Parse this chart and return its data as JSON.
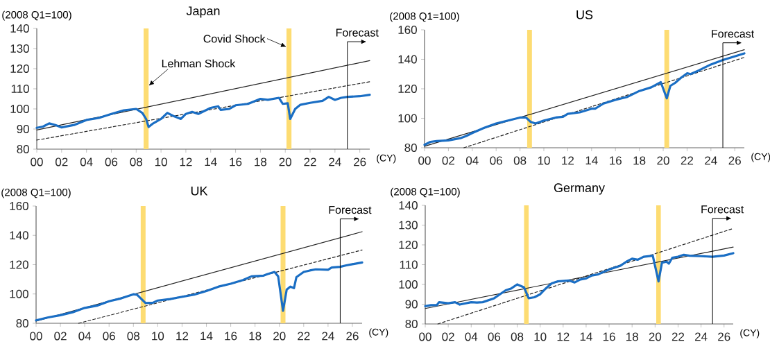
{
  "chart_data": [
    {
      "type": "line",
      "title": "Japan",
      "ylabel": "(2008 Q1=100)",
      "xlabel": "(CY)",
      "xlim": [
        2000,
        2026.8
      ],
      "ylim": [
        80,
        140
      ],
      "yticks": [
        80,
        90,
        100,
        110,
        120,
        130,
        140
      ],
      "xticks": [
        {
          "value": 2000,
          "label": "00"
        },
        {
          "value": 2002,
          "label": "02"
        },
        {
          "value": 2004,
          "label": "04"
        },
        {
          "value": 2006,
          "label": "06"
        },
        {
          "value": 2008,
          "label": "08"
        },
        {
          "value": 2010,
          "label": "10"
        },
        {
          "value": 2012,
          "label": "12"
        },
        {
          "value": 2014,
          "label": "14"
        },
        {
          "value": 2016,
          "label": "16"
        },
        {
          "value": 2018,
          "label": "18"
        },
        {
          "value": 2020,
          "label": "20"
        },
        {
          "value": 2022,
          "label": "22"
        },
        {
          "value": 2024,
          "label": "24"
        },
        {
          "value": 2026,
          "label": "26"
        }
      ],
      "series": [
        {
          "color": "#1a6ec4",
          "x": [
            2000,
            2000.5,
            2001,
            2001.5,
            2002,
            2003,
            2004,
            2005,
            2006,
            2007,
            2008,
            2008.5,
            2008.8,
            2009,
            2009.3,
            2010,
            2010.5,
            2011,
            2011.6,
            2012,
            2012.5,
            2013,
            2014,
            2014.6,
            2014.8,
            2015.5,
            2016,
            2017,
            2018,
            2018.6,
            2019.5,
            2019.8,
            2020.2,
            2020.4,
            2020.8,
            2021.2,
            2022,
            2022.5,
            2023,
            2023.5,
            2024,
            2024.5,
            2025,
            2026,
            2026.8
          ],
          "values": [
            90.6,
            91.2,
            92.8,
            92,
            90.8,
            92,
            94.5,
            95.5,
            97.5,
            99.3,
            100,
            98,
            95,
            91,
            92.5,
            95,
            98,
            96.5,
            95,
            97.5,
            98.5,
            97.5,
            100.5,
            101.3,
            99.5,
            100,
            101.8,
            102.5,
            105,
            104.5,
            105.5,
            102.5,
            102.8,
            95,
            100,
            102,
            103,
            103.5,
            104,
            106,
            104.5,
            105.5,
            106,
            106.3,
            107
          ]
        },
        {
          "color": "#222222",
          "line_style": "solid",
          "x": [
            2000,
            2026.8
          ],
          "values": [
            89.5,
            124
          ]
        },
        {
          "color": "#222222",
          "line_style": "dashed",
          "x": [
            2000,
            2026.8
          ],
          "values": [
            84.5,
            113.5
          ]
        }
      ],
      "bands": [
        {
          "axis": "x",
          "from": 2008.6,
          "to": 2009.0,
          "color": "#fddc72"
        },
        {
          "axis": "x",
          "from": 2020.1,
          "to": 2020.5,
          "color": "#fddc72"
        }
      ],
      "ref_lines": [
        {
          "axis": "x",
          "value": 2025,
          "label": "Forecast"
        }
      ],
      "annotations": [
        {
          "text": "Lehman Shock",
          "x": 2009.0,
          "y": 111.5
        },
        {
          "text": "Covid Shock",
          "x": 2020.1,
          "y": 130.8
        }
      ]
    },
    {
      "type": "line",
      "title": "US",
      "ylabel": "(2008 Q1=100)",
      "xlabel": "(CY)",
      "xlim": [
        2000,
        2026.8
      ],
      "ylim": [
        80,
        160
      ],
      "yticks": [
        80,
        100,
        120,
        140,
        160
      ],
      "xticks": [
        {
          "value": 2000,
          "label": "00"
        },
        {
          "value": 2002,
          "label": "02"
        },
        {
          "value": 2004,
          "label": "04"
        },
        {
          "value": 2006,
          "label": "06"
        },
        {
          "value": 2008,
          "label": "08"
        },
        {
          "value": 2010,
          "label": "10"
        },
        {
          "value": 2012,
          "label": "12"
        },
        {
          "value": 2014,
          "label": "14"
        },
        {
          "value": 2016,
          "label": "16"
        },
        {
          "value": 2018,
          "label": "18"
        },
        {
          "value": 2020,
          "label": "20"
        },
        {
          "value": 2022,
          "label": "22"
        },
        {
          "value": 2024,
          "label": "24"
        },
        {
          "value": 2026,
          "label": "26"
        }
      ],
      "series": [
        {
          "color": "#1a6ec4",
          "x": [
            2000,
            2000.5,
            2001,
            2002,
            2003,
            2003.5,
            2004,
            2005,
            2006,
            2007,
            2008,
            2008.5,
            2008.9,
            2009.3,
            2010,
            2011,
            2011.6,
            2012,
            2013,
            2014,
            2014.3,
            2015,
            2016,
            2017,
            2018,
            2019,
            2019.8,
            2020.3,
            2020.6,
            2021,
            2021.5,
            2022,
            2022.3,
            2023,
            2024,
            2025,
            2026,
            2026.8
          ],
          "values": [
            82,
            84,
            84.5,
            85,
            86.5,
            88,
            90,
            93.5,
            96.5,
            98.5,
            100.5,
            100.5,
            97.5,
            96.5,
            98.5,
            100.5,
            101,
            103,
            104,
            106.5,
            106.5,
            110,
            112.5,
            114.5,
            118.5,
            121,
            124.5,
            113.5,
            122,
            124,
            127.5,
            130.5,
            130,
            132.5,
            136.5,
            139.5,
            142,
            144
          ]
        },
        {
          "color": "#222222",
          "line_style": "solid",
          "x": [
            2000,
            2026.8
          ],
          "values": [
            81,
            146.5
          ]
        },
        {
          "color": "#222222",
          "line_style": "dashed",
          "x": [
            2003.3,
            2026.8
          ],
          "values": [
            80,
            141.3
          ]
        }
      ],
      "bands": [
        {
          "axis": "x",
          "from": 2008.6,
          "to": 2009.0,
          "color": "#fddc72"
        },
        {
          "axis": "x",
          "from": 2020.1,
          "to": 2020.5,
          "color": "#fddc72"
        }
      ],
      "ref_lines": [
        {
          "axis": "x",
          "value": 2025,
          "label": "Forecast"
        }
      ]
    },
    {
      "type": "line",
      "title": "UK",
      "ylabel": "(2008 Q1=100)",
      "xlabel": "(CY)",
      "xlim": [
        2000,
        2026.8
      ],
      "ylim": [
        80,
        160
      ],
      "yticks": [
        80,
        100,
        120,
        140,
        160
      ],
      "xticks": [
        {
          "value": 2000,
          "label": "00"
        },
        {
          "value": 2002,
          "label": "02"
        },
        {
          "value": 2004,
          "label": "04"
        },
        {
          "value": 2006,
          "label": "06"
        },
        {
          "value": 2008,
          "label": "08"
        },
        {
          "value": 2010,
          "label": "10"
        },
        {
          "value": 2012,
          "label": "12"
        },
        {
          "value": 2014,
          "label": "14"
        },
        {
          "value": 2016,
          "label": "16"
        },
        {
          "value": 2018,
          "label": "18"
        },
        {
          "value": 2020,
          "label": "20"
        },
        {
          "value": 2022,
          "label": "22"
        },
        {
          "value": 2024,
          "label": "24"
        },
        {
          "value": 2026,
          "label": "26"
        }
      ],
      "series": [
        {
          "color": "#1a6ec4",
          "x": [
            2000,
            2001,
            2002,
            2003,
            2004,
            2005,
            2006,
            2007,
            2008,
            2008.3,
            2009,
            2009.6,
            2010,
            2011,
            2012,
            2013,
            2014,
            2015,
            2016,
            2017,
            2017.7,
            2018.7,
            2019,
            2019.6,
            2019.9,
            2020.3,
            2020.6,
            2020.9,
            2021.2,
            2021.4,
            2022,
            2022.5,
            2023,
            2024,
            2024.3,
            2025,
            2025.5,
            2026,
            2026.8
          ],
          "values": [
            82,
            84,
            85.5,
            87.5,
            90.5,
            92,
            95,
            97,
            99.8,
            99.5,
            93.8,
            94,
            95.5,
            96.5,
            98,
            99.5,
            102,
            105,
            107,
            109.5,
            112,
            112.5,
            113.5,
            115,
            112,
            88.5,
            103,
            105,
            104,
            111.5,
            115,
            116,
            116.8,
            116.5,
            118,
            118.5,
            119.5,
            120.3,
            121.5
          ]
        },
        {
          "color": "#222222",
          "line_style": "solid",
          "x": [
            2000,
            2026.8
          ],
          "values": [
            81.5,
            142.5
          ]
        },
        {
          "color": "#222222",
          "line_style": "dashed",
          "x": [
            2003.5,
            2026.8
          ],
          "values": [
            80,
            130
          ]
        }
      ],
      "bands": [
        {
          "axis": "x",
          "from": 2008.6,
          "to": 2009.0,
          "color": "#fddc72"
        },
        {
          "axis": "x",
          "from": 2020.1,
          "to": 2020.5,
          "color": "#fddc72"
        }
      ],
      "ref_lines": [
        {
          "axis": "x",
          "value": 2025,
          "label": "Forecast"
        }
      ]
    },
    {
      "type": "line",
      "title": "Germany",
      "ylabel": "(2008 Q1=100)",
      "xlabel": "(CY)",
      "xlim": [
        2000,
        2026.8
      ],
      "ylim": [
        80,
        140
      ],
      "yticks": [
        80,
        90,
        100,
        110,
        120,
        130,
        140
      ],
      "xticks": [
        {
          "value": 2000,
          "label": "00"
        },
        {
          "value": 2002,
          "label": "02"
        },
        {
          "value": 2004,
          "label": "04"
        },
        {
          "value": 2006,
          "label": "06"
        },
        {
          "value": 2008,
          "label": "08"
        },
        {
          "value": 2010,
          "label": "10"
        },
        {
          "value": 2012,
          "label": "12"
        },
        {
          "value": 2014,
          "label": "14"
        },
        {
          "value": 2016,
          "label": "16"
        },
        {
          "value": 2018,
          "label": "18"
        },
        {
          "value": 2020,
          "label": "20"
        },
        {
          "value": 2022,
          "label": "22"
        },
        {
          "value": 2024,
          "label": "24"
        },
        {
          "value": 2026,
          "label": "26"
        }
      ],
      "series": [
        {
          "color": "#1a6ec4",
          "x": [
            2000,
            2000.5,
            2001,
            2001.2,
            2002,
            2002.6,
            2003,
            2004,
            2004.5,
            2005,
            2006,
            2007,
            2007.5,
            2008,
            2008.6,
            2009,
            2009.5,
            2010,
            2010.5,
            2011,
            2011.5,
            2012.5,
            2013,
            2013.5,
            2014,
            2014.5,
            2015,
            2016,
            2017,
            2017.5,
            2018,
            2018.5,
            2019,
            2019.8,
            2020.3,
            2020.6,
            2021,
            2021.2,
            2021.5,
            2022,
            2022.5,
            2023,
            2024,
            2025,
            2026,
            2026.8
          ],
          "values": [
            89,
            89.5,
            89.5,
            91,
            90.5,
            91,
            89.8,
            91,
            90.8,
            91,
            93,
            97,
            98,
            100,
            98.5,
            93,
            93.5,
            95,
            98,
            100.5,
            101.5,
            102,
            101,
            102.5,
            103,
            104.5,
            105,
            107.5,
            109.5,
            111.5,
            113,
            112.5,
            114,
            114.5,
            101.5,
            111,
            111.5,
            110.5,
            113.5,
            114,
            115,
            114.5,
            114.3,
            114,
            114.6,
            115.8
          ]
        },
        {
          "color": "#222222",
          "line_style": "solid",
          "x": [
            2000,
            2026.8
          ],
          "values": [
            87.8,
            118.9
          ]
        },
        {
          "color": "#222222",
          "line_style": "dashed",
          "x": [
            2001.1,
            2026.8
          ],
          "values": [
            80,
            128.3
          ]
        }
      ],
      "bands": [
        {
          "axis": "x",
          "from": 2008.6,
          "to": 2009.0,
          "color": "#fddc72"
        },
        {
          "axis": "x",
          "from": 2020.1,
          "to": 2020.5,
          "color": "#fddc72"
        }
      ],
      "ref_lines": [
        {
          "axis": "x",
          "value": 2025,
          "label": "Forecast"
        }
      ]
    }
  ]
}
